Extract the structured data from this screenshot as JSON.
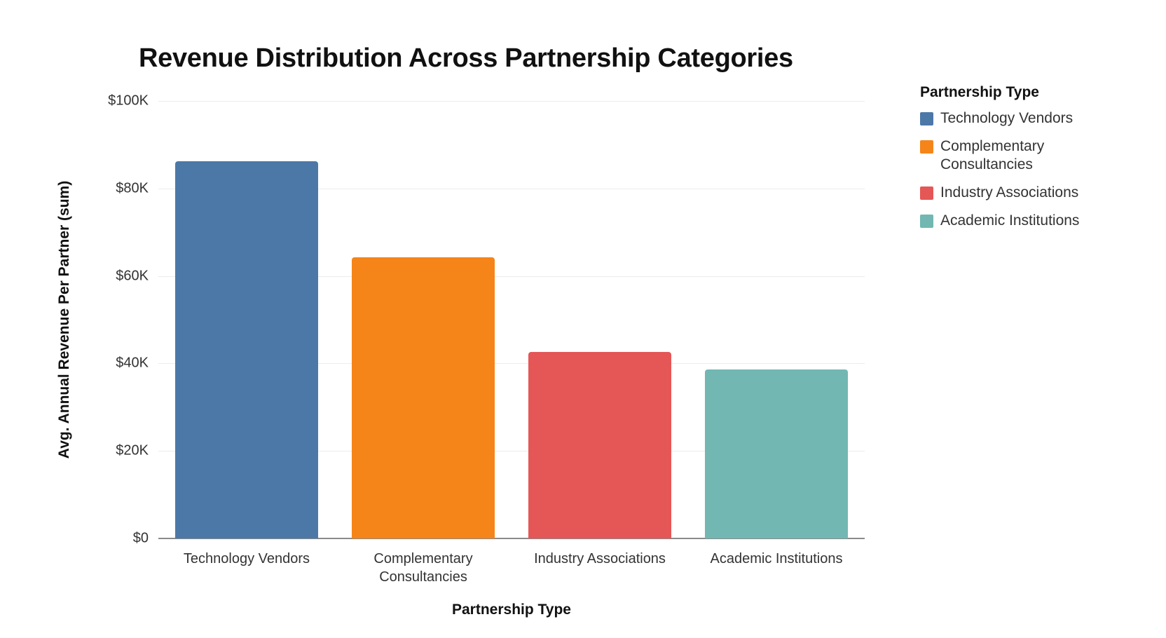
{
  "chart_data": {
    "type": "bar",
    "title": "Revenue Distribution Across Partnership Categories",
    "xlabel": "Partnership Type",
    "ylabel": "Avg. Annual Revenue Per Partner (sum)",
    "categories": [
      "Technology Vendors",
      "Complementary Consultancies",
      "Industry Associations",
      "Academic Institutions"
    ],
    "values": [
      86300,
      64200,
      42700,
      38700
    ],
    "colors": [
      "#4c78a8",
      "#f58518",
      "#e45756",
      "#72b7b2"
    ],
    "ylim": [
      0,
      100000
    ],
    "yticks": [
      0,
      20000,
      40000,
      60000,
      80000,
      100000
    ],
    "ytick_labels": [
      "$0",
      "$20K",
      "$40K",
      "$60K",
      "$80K",
      "$100K"
    ],
    "grid": true,
    "legend": {
      "title": "Partnership Type",
      "position": "right",
      "entries": [
        "Technology Vendors",
        "Complementary Consultancies",
        "Industry Associations",
        "Academic Institutions"
      ]
    }
  },
  "labels": {
    "title": "Revenue Distribution Across Partnership Categories",
    "xlabel": "Partnership Type",
    "ylabel": "Avg. Annual Revenue Per Partner (sum)",
    "legend_title": "Partnership Type"
  }
}
